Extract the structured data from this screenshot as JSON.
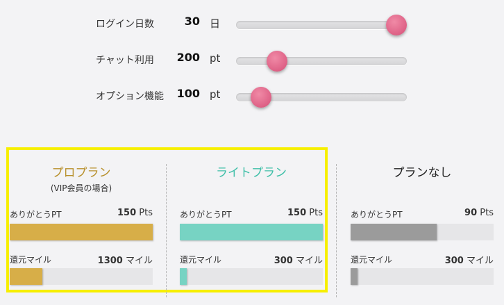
{
  "sliders": [
    {
      "label": "ログイン日数",
      "value": "30",
      "unit": "日",
      "fraction": 0.94
    },
    {
      "label": "チャット利用",
      "value": "200",
      "unit": "pt",
      "fraction": 0.24
    },
    {
      "label": "オプション機能",
      "value": "100",
      "unit": "pt",
      "fraction": 0.145
    }
  ],
  "plans": [
    {
      "title": "プロプラン",
      "subtitle": "(VIP会員の場合)",
      "title_color": "#b8912e",
      "bar_color": "#d7ae48",
      "thanks": {
        "label": "ありがとうPT",
        "value": "150",
        "unit": "Pts",
        "fraction": 1.0
      },
      "miles": {
        "label": "還元マイル",
        "value": "1300",
        "unit": "マイル",
        "fraction": 0.23
      }
    },
    {
      "title": "ライトプラン",
      "subtitle": "",
      "title_color": "#3fbfa8",
      "bar_color": "#77d3c3",
      "thanks": {
        "label": "ありがとうPT",
        "value": "150",
        "unit": "Pts",
        "fraction": 1.0
      },
      "miles": {
        "label": "還元マイル",
        "value": "300",
        "unit": "マイル",
        "fraction": 0.05
      }
    },
    {
      "title": "プランなし",
      "subtitle": "",
      "title_color": "#222222",
      "bar_color": "#9b9b9b",
      "thanks": {
        "label": "ありがとうPT",
        "value": "90",
        "unit": "Pts",
        "fraction": 0.6
      },
      "miles": {
        "label": "還元マイル",
        "value": "300",
        "unit": "マイル",
        "fraction": 0.05
      }
    }
  ]
}
